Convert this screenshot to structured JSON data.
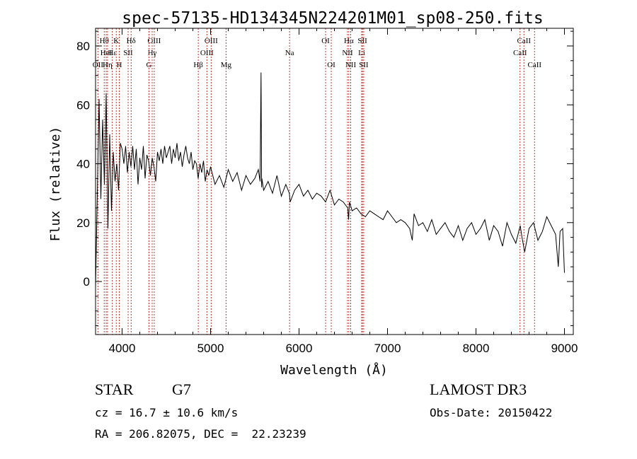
{
  "chart_data": {
    "type": "line",
    "title": "spec-57135-HD134345N224201M01_sp08-250.fits",
    "xlabel": "Wavelength (Å)",
    "ylabel": "Flux (relative)",
    "xlim": [
      3700,
      9100
    ],
    "ylim": [
      -18,
      86
    ],
    "xticks": [
      4000,
      5000,
      6000,
      7000,
      8000,
      9000
    ],
    "yticks": [
      0,
      20,
      40,
      60,
      80
    ],
    "grid": false,
    "series": [
      {
        "name": "flux",
        "color": "#000000",
        "x": [
          3700,
          3720,
          3740,
          3760,
          3780,
          3800,
          3820,
          3840,
          3860,
          3880,
          3900,
          3920,
          3940,
          3960,
          3980,
          4000,
          4020,
          4040,
          4060,
          4080,
          4100,
          4120,
          4140,
          4160,
          4180,
          4200,
          4220,
          4240,
          4260,
          4280,
          4300,
          4320,
          4340,
          4360,
          4380,
          4400,
          4420,
          4440,
          4460,
          4480,
          4500,
          4520,
          4540,
          4560,
          4580,
          4600,
          4620,
          4640,
          4660,
          4680,
          4700,
          4720,
          4740,
          4760,
          4780,
          4800,
          4820,
          4840,
          4860,
          4880,
          4900,
          4920,
          4940,
          4960,
          4980,
          5000,
          5050,
          5100,
          5150,
          5200,
          5250,
          5300,
          5350,
          5400,
          5450,
          5500,
          5540,
          5560,
          5570,
          5577,
          5580,
          5600,
          5650,
          5700,
          5750,
          5800,
          5850,
          5890,
          5900,
          5950,
          6000,
          6050,
          6100,
          6150,
          6200,
          6250,
          6300,
          6350,
          6400,
          6450,
          6500,
          6550,
          6560,
          6570,
          6600,
          6650,
          6700,
          6750,
          6800,
          6850,
          6900,
          6950,
          7000,
          7050,
          7100,
          7150,
          7200,
          7250,
          7280,
          7300,
          7350,
          7400,
          7450,
          7500,
          7550,
          7600,
          7650,
          7700,
          7750,
          7800,
          7850,
          7900,
          7950,
          8000,
          8050,
          8100,
          8150,
          8200,
          8250,
          8300,
          8350,
          8400,
          8450,
          8500,
          8520,
          8550,
          8600,
          8650,
          8700,
          8750,
          8800,
          8850,
          8900,
          8930,
          8950,
          8980,
          9000
        ],
        "y": [
          -2,
          30,
          62,
          28,
          55,
          33,
          64,
          18,
          50,
          24,
          44,
          34,
          40,
          31,
          47,
          45,
          40,
          46,
          37,
          44,
          39,
          46,
          38,
          45,
          33,
          42,
          38,
          46,
          35,
          43,
          41,
          36,
          42,
          39,
          34,
          44,
          41,
          45,
          40,
          46,
          42,
          44,
          46,
          40,
          45,
          42,
          47,
          41,
          44,
          39,
          43,
          46,
          42,
          40,
          44,
          38,
          41,
          40,
          35,
          40,
          37,
          41,
          34,
          38,
          36,
          39,
          33,
          36,
          32,
          38,
          34,
          37,
          31,
          36,
          33,
          35,
          38,
          34,
          71,
          32,
          35,
          31,
          34,
          30,
          36,
          29,
          33,
          30,
          27,
          31,
          33,
          29,
          31,
          28,
          30,
          29,
          27,
          31,
          26,
          28,
          27,
          25,
          21,
          27,
          24,
          25,
          23,
          22,
          24,
          23,
          22,
          21,
          24,
          22,
          20,
          21,
          20,
          18,
          14,
          23,
          19,
          20,
          17,
          21,
          16,
          18,
          20,
          17,
          15,
          19,
          14,
          18,
          20,
          16,
          18,
          21,
          14,
          19,
          17,
          12,
          20,
          16,
          13,
          19,
          15,
          10,
          18,
          20,
          14,
          17,
          22,
          19,
          16,
          5,
          17,
          18,
          3
        ]
      }
    ],
    "lines": [
      {
        "label": "Hθ",
        "x": 3798,
        "row": 1
      },
      {
        "label": "OII",
        "x": 3727,
        "row": 3
      },
      {
        "label": "HeI",
        "x": 3820,
        "row": 2
      },
      {
        "label": "Hη",
        "x": 3835,
        "row": 3
      },
      {
        "label": "Hε",
        "x": 3889,
        "row": 2
      },
      {
        "label": "K",
        "x": 3934,
        "row": 1
      },
      {
        "label": "H",
        "x": 3968,
        "row": 3
      },
      {
        "label": "SII",
        "x": 4068,
        "row": 2
      },
      {
        "label": "Hδ",
        "x": 4102,
        "row": 1
      },
      {
        "label": "OIII",
        "x": 4363,
        "row": 1
      },
      {
        "label": "Hγ",
        "x": 4340,
        "row": 2
      },
      {
        "label": "G",
        "x": 4304,
        "row": 3
      },
      {
        "label": "Hβ",
        "x": 4861,
        "row": 3
      },
      {
        "label": "OIII",
        "x": 5007,
        "row": 1
      },
      {
        "label": "OIII",
        "x": 4959,
        "row": 2
      },
      {
        "label": "Mg",
        "x": 5175,
        "row": 3
      },
      {
        "label": "Na",
        "x": 5893,
        "row": 2
      },
      {
        "label": "OI",
        "x": 6300,
        "row": 1
      },
      {
        "label": "OI",
        "x": 6364,
        "row": 3
      },
      {
        "label": "Hα",
        "x": 6563,
        "row": 1
      },
      {
        "label": "NII",
        "x": 6548,
        "row": 2
      },
      {
        "label": "NII",
        "x": 6584,
        "row": 3
      },
      {
        "label": "SII",
        "x": 6717,
        "row": 1
      },
      {
        "label": "Li",
        "x": 6708,
        "row": 2
      },
      {
        "label": "SII",
        "x": 6731,
        "row": 3
      },
      {
        "label": "CaII",
        "x": 8542,
        "row": 1
      },
      {
        "label": "CaII",
        "x": 8498,
        "row": 2
      },
      {
        "label": "CaII",
        "x": 8662,
        "row": 3
      }
    ],
    "line_color": "#c0392b"
  },
  "info": {
    "class_label": "STAR",
    "subclass": "G7",
    "survey": "LAMOST DR3",
    "cz": "cz = 16.7 ± 10.6 km/s",
    "obs_date": "Obs-Date: 20150422",
    "coords": "RA = 206.82075, DEC =  22.23239"
  }
}
